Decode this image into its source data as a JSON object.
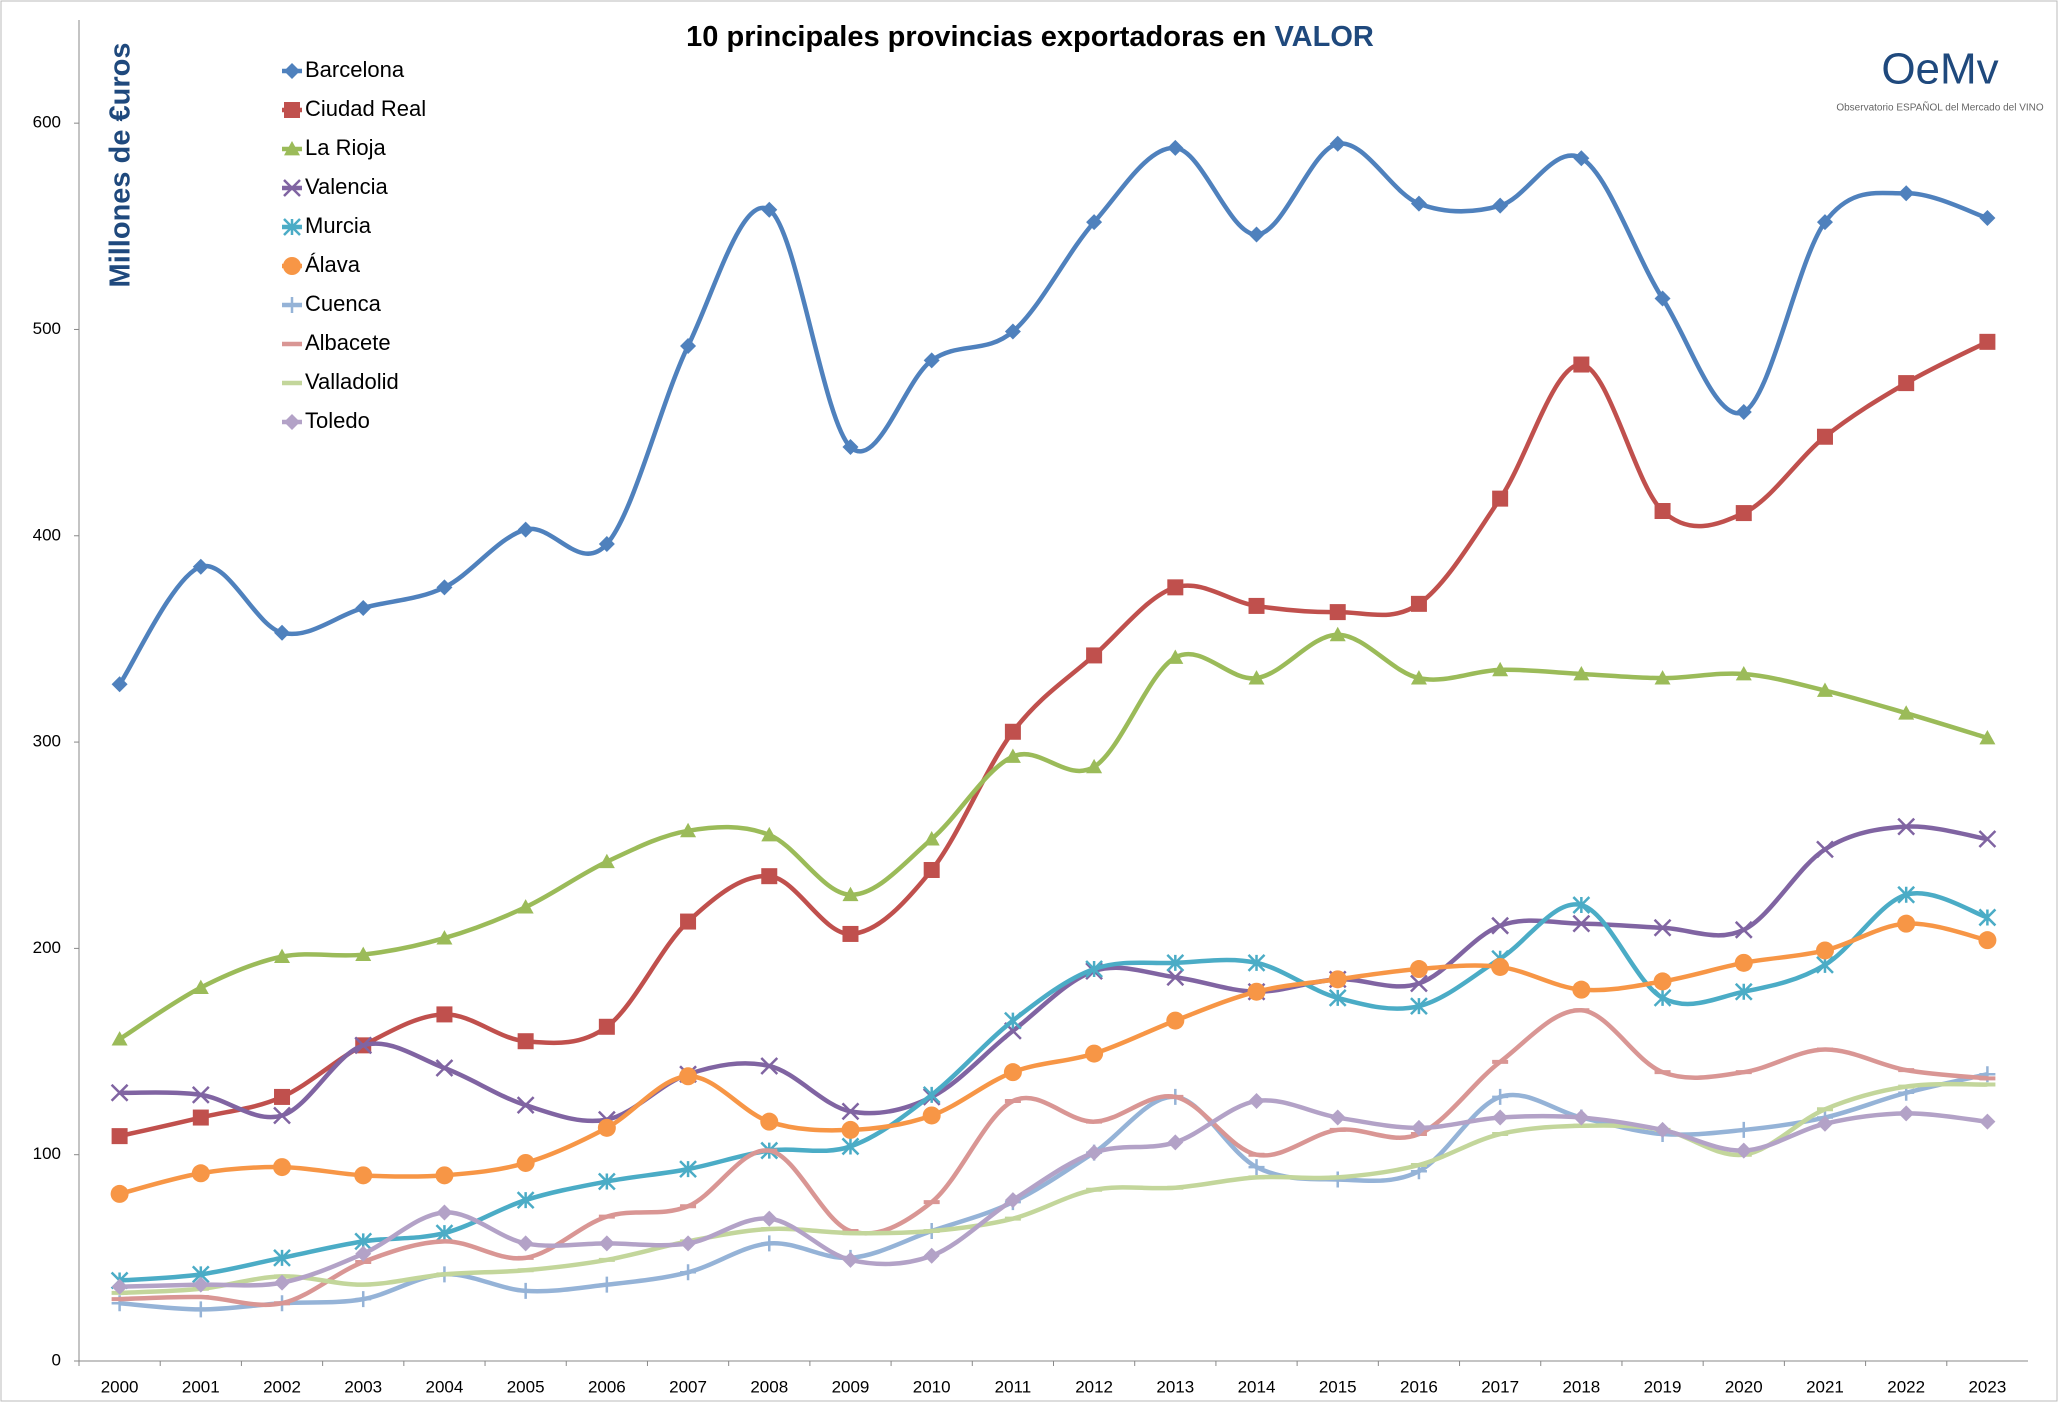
{
  "chart_data": {
    "type": "line",
    "title": "10 principales provincias exportadoras en",
    "title_emphasis": "VALOR",
    "y_label": "Millones de €uros",
    "logo": {
      "mark": "OeMv",
      "caption": "Observatorio ESPAÑOL del Mercado del VINO"
    },
    "categories": [
      "2000",
      "2001",
      "2002",
      "2003",
      "2004",
      "2005",
      "2006",
      "2007",
      "2008",
      "2009",
      "2010",
      "2011",
      "2012",
      "2013",
      "2014",
      "2015",
      "2016",
      "2017",
      "2018",
      "2019",
      "2020",
      "2021",
      "2022",
      "2023"
    ],
    "ylim": [
      0,
      650
    ],
    "yticks": [
      0,
      100,
      200,
      300,
      400,
      500,
      600
    ],
    "smooth": true,
    "legend": "top-left",
    "series": [
      {
        "name": "Barcelona",
        "color": "#4f81bd",
        "marker": "diamond",
        "values": [
          328,
          385,
          353,
          365,
          375,
          403,
          396,
          492,
          558,
          443,
          485,
          499,
          552,
          588,
          546,
          590,
          561,
          560,
          583,
          515,
          460,
          552,
          566,
          554
        ]
      },
      {
        "name": "Ciudad Real",
        "color": "#c0504d",
        "marker": "square",
        "values": [
          109,
          118,
          128,
          153,
          168,
          155,
          162,
          213,
          235,
          207,
          238,
          305,
          342,
          375,
          366,
          363,
          367,
          418,
          483,
          412,
          411,
          448,
          474,
          494
        ]
      },
      {
        "name": "La Rioja",
        "color": "#9bbb59",
        "marker": "triangle",
        "values": [
          156,
          181,
          196,
          197,
          205,
          220,
          242,
          257,
          255,
          226,
          253,
          293,
          288,
          341,
          331,
          352,
          331,
          335,
          333,
          331,
          333,
          325,
          314,
          302
        ]
      },
      {
        "name": "Valencia",
        "color": "#8064a2",
        "marker": "x",
        "values": [
          130,
          129,
          119,
          153,
          142,
          124,
          117,
          139,
          143,
          121,
          128,
          160,
          189,
          186,
          179,
          185,
          183,
          211,
          212,
          210,
          209,
          248,
          259,
          253
        ]
      },
      {
        "name": "Murcia",
        "color": "#4bacc6",
        "marker": "star",
        "values": [
          39,
          42,
          50,
          58,
          62,
          78,
          87,
          93,
          102,
          104,
          129,
          165,
          190,
          193,
          193,
          176,
          172,
          195,
          221,
          176,
          179,
          192,
          226,
          215
        ]
      },
      {
        "name": "Álava",
        "color": "#f79646",
        "marker": "circle",
        "values": [
          81,
          91,
          94,
          90,
          90,
          96,
          113,
          138,
          116,
          112,
          119,
          140,
          149,
          165,
          179,
          185,
          190,
          191,
          180,
          184,
          193,
          199,
          212,
          204
        ]
      },
      {
        "name": "Cuenca",
        "color": "#95b3d7",
        "marker": "plus",
        "values": [
          28,
          25,
          28,
          30,
          42,
          34,
          37,
          43,
          57,
          50,
          63,
          77,
          101,
          128,
          94,
          88,
          92,
          128,
          118,
          110,
          112,
          118,
          130,
          139
        ]
      },
      {
        "name": "Albacete",
        "color": "#d99694",
        "marker": "dash",
        "values": [
          30,
          31,
          28,
          48,
          58,
          50,
          70,
          75,
          102,
          63,
          77,
          126,
          116,
          128,
          100,
          112,
          110,
          145,
          170,
          140,
          140,
          151,
          141,
          137
        ]
      },
      {
        "name": "Valladolid",
        "color": "#c3d69b",
        "marker": "dash",
        "values": [
          33,
          35,
          41,
          37,
          42,
          44,
          49,
          58,
          64,
          62,
          63,
          69,
          83,
          84,
          89,
          89,
          95,
          110,
          114,
          112,
          100,
          122,
          133,
          134
        ]
      },
      {
        "name": "Toledo",
        "color": "#b3a2c7",
        "marker": "diamond",
        "values": [
          36,
          37,
          38,
          52,
          72,
          57,
          57,
          57,
          69,
          49,
          51,
          78,
          101,
          106,
          126,
          118,
          113,
          118,
          118,
          112,
          102,
          115,
          120,
          116
        ]
      }
    ]
  }
}
